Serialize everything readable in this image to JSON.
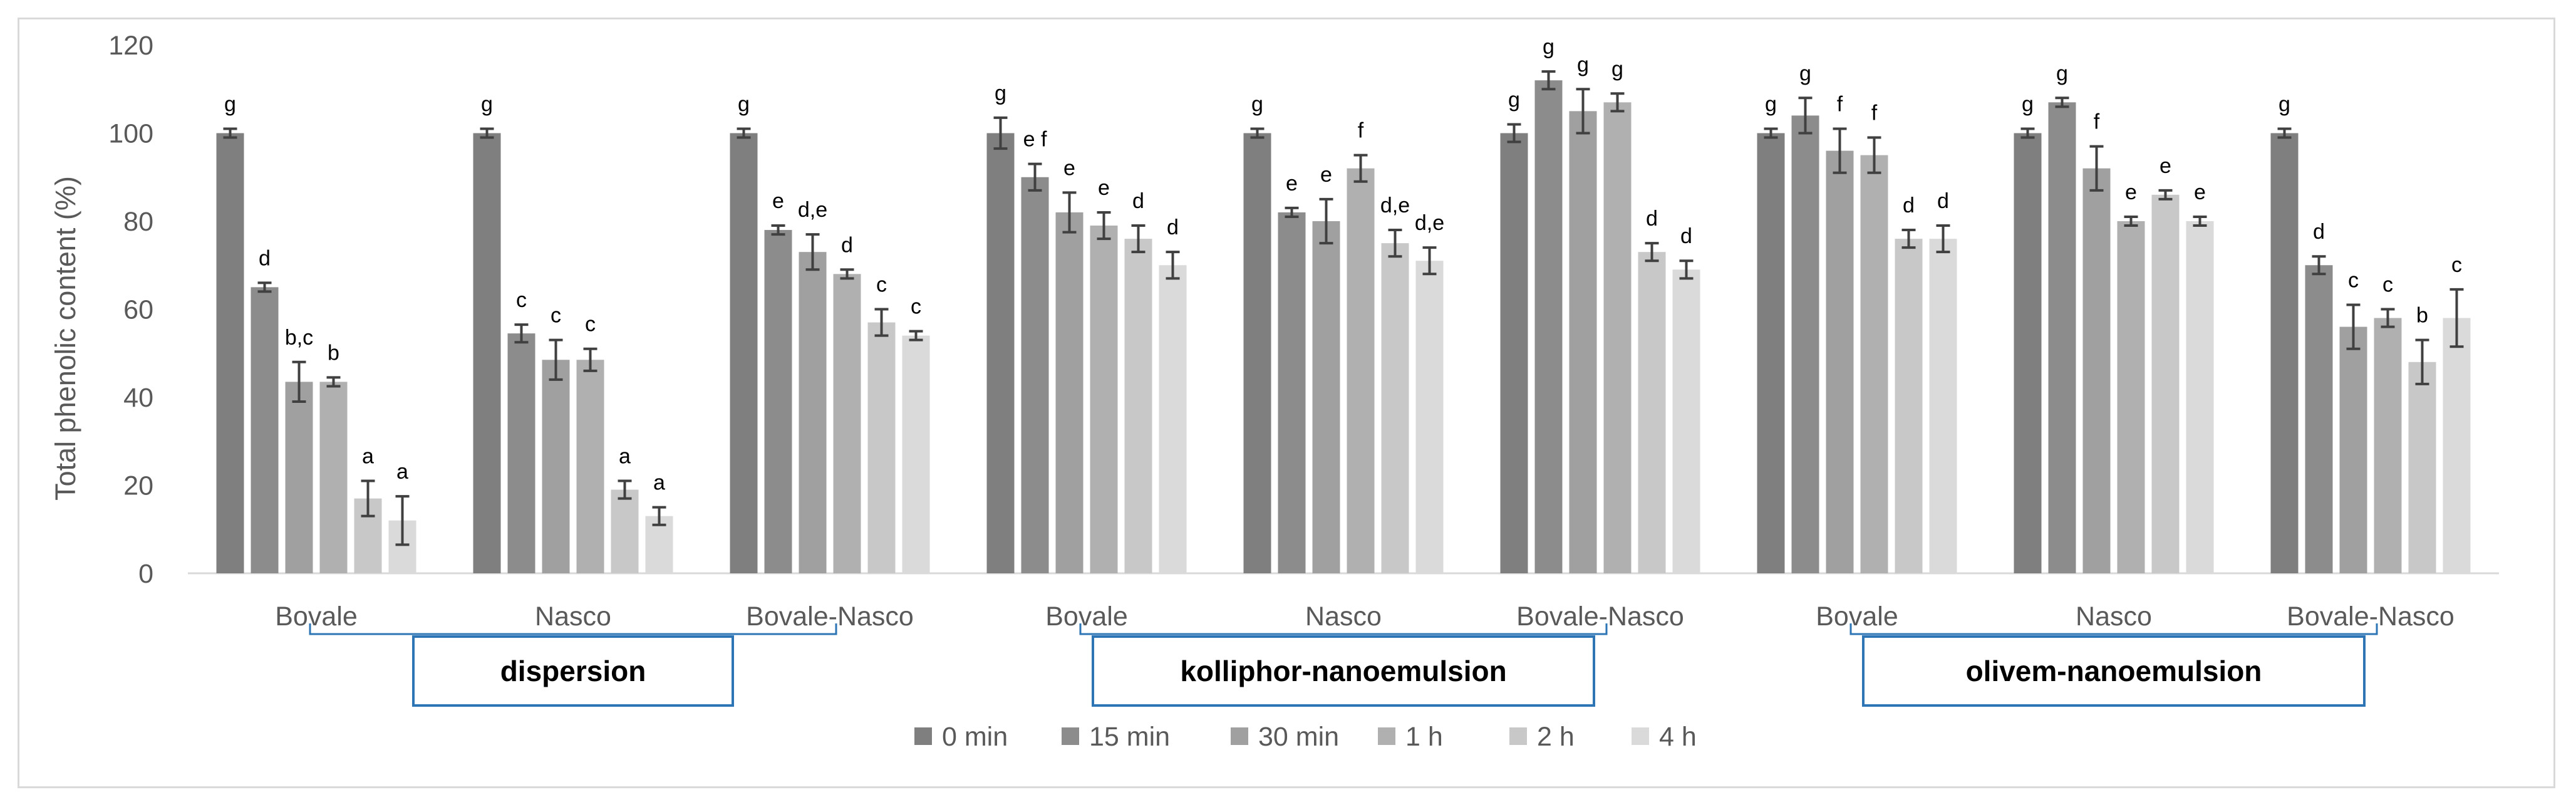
{
  "chart_data": {
    "type": "bar",
    "title": "",
    "xlabel": "",
    "ylabel": "Total phenolic content (%)",
    "ylim": [
      0,
      120
    ],
    "yticks": [
      0,
      20,
      40,
      60,
      80,
      100,
      120
    ],
    "grid": false,
    "legend_position": "bottom",
    "series_names": [
      "0 min",
      "15 min",
      "30 min",
      "1 h",
      "2 h",
      "4 h"
    ],
    "series_colors": [
      "#7f7f7f",
      "#8c8c8c",
      "#a0a0a0",
      "#b0b0b0",
      "#c8c8c8",
      "#dadada"
    ],
    "formulations": [
      "dispersion",
      "kolliphor-nanoemulsion",
      "olivem-nanoemulsion"
    ],
    "groups": [
      {
        "label": "Bovale",
        "formulation": 0,
        "values": [
          100,
          65,
          43.5,
          43.5,
          17,
          12
        ],
        "errors": [
          1,
          1,
          4.5,
          1,
          4,
          5.5
        ],
        "sig": [
          "g",
          "d",
          "b,c",
          "b",
          "a",
          "a"
        ]
      },
      {
        "label": "Nasco",
        "formulation": 0,
        "values": [
          100,
          54.5,
          48.5,
          48.5,
          19,
          13
        ],
        "errors": [
          1,
          2,
          4.5,
          2.5,
          2,
          2
        ],
        "sig": [
          "g",
          "c",
          "c",
          "c",
          "a",
          "a"
        ]
      },
      {
        "label": "Bovale-Nasco",
        "formulation": 0,
        "values": [
          100,
          78,
          73,
          68,
          57,
          54
        ],
        "errors": [
          1,
          1,
          4,
          1,
          3,
          1
        ],
        "sig": [
          "g",
          "e",
          "d,e",
          "d",
          "c",
          "c"
        ]
      },
      {
        "label": "Bovale",
        "formulation": 1,
        "values": [
          100,
          90,
          82,
          79,
          76,
          70
        ],
        "errors": [
          3.5,
          3,
          4.5,
          3,
          3,
          3
        ],
        "sig": [
          "g",
          "e f",
          "e",
          "e",
          "d",
          "d"
        ]
      },
      {
        "label": "Nasco",
        "formulation": 1,
        "values": [
          100,
          82,
          80,
          92,
          75,
          71
        ],
        "errors": [
          1,
          1,
          5,
          3,
          3,
          3
        ],
        "sig": [
          "g",
          "e",
          "e",
          "f",
          "d,e",
          "d,e"
        ]
      },
      {
        "label": "Bovale-Nasco",
        "formulation": 1,
        "values": [
          100,
          112,
          105,
          107,
          73,
          69
        ],
        "errors": [
          2,
          2,
          5,
          2,
          2,
          2
        ],
        "sig": [
          "g",
          "g",
          "g",
          "g",
          "d",
          "d"
        ]
      },
      {
        "label": "Bovale",
        "formulation": 2,
        "values": [
          100,
          104,
          96,
          95,
          76,
          76
        ],
        "errors": [
          1,
          4,
          5,
          4,
          2,
          3
        ],
        "sig": [
          "g",
          "g",
          "f",
          "f",
          "d",
          "d"
        ]
      },
      {
        "label": "Nasco",
        "formulation": 2,
        "values": [
          100,
          107,
          92,
          80,
          86,
          80
        ],
        "errors": [
          1,
          1,
          5,
          1,
          1,
          1
        ],
        "sig": [
          "g",
          "g",
          "f",
          "e",
          "e",
          "e"
        ]
      },
      {
        "label": "Bovale-Nasco",
        "formulation": 2,
        "values": [
          100,
          70,
          56,
          58,
          48,
          58
        ],
        "errors": [
          1,
          2,
          5,
          2,
          5,
          6.5
        ],
        "sig": [
          "g",
          "d",
          "c",
          "c",
          "b",
          "c"
        ]
      }
    ]
  }
}
